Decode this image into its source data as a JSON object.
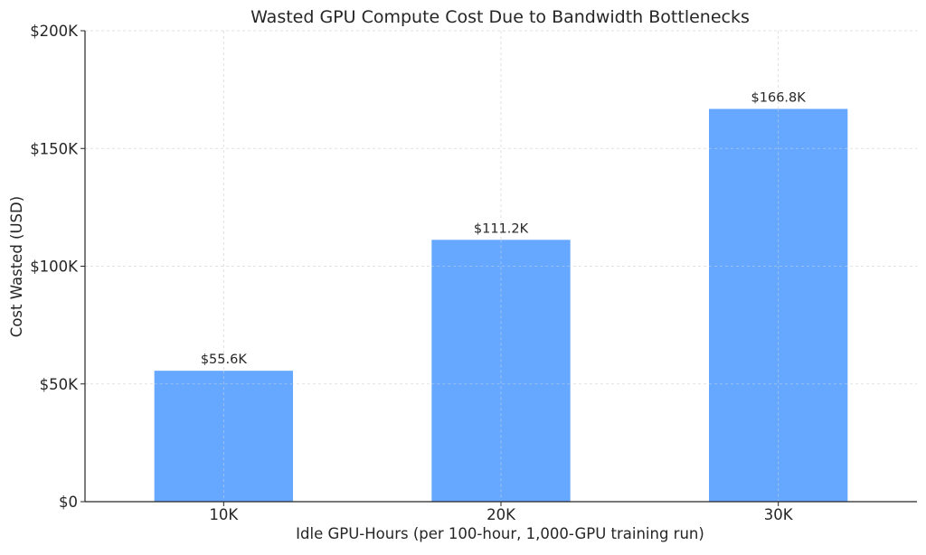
{
  "chart_data": {
    "type": "bar",
    "title": "Wasted GPU Compute Cost Due to Bandwidth Bottlenecks",
    "xlabel": "Idle GPU-Hours (per 100-hour, 1,000-GPU training run)",
    "ylabel": "Cost Wasted (USD)",
    "categories": [
      "10K",
      "20K",
      "30K"
    ],
    "values": [
      55600,
      111200,
      166800
    ],
    "value_labels": [
      "$55.6K",
      "$111.2K",
      "$166.8K"
    ],
    "ylim": [
      0,
      200000
    ],
    "yticks": [
      0,
      50000,
      100000,
      150000,
      200000
    ],
    "ytick_labels": [
      "$0",
      "$50K",
      "$100K",
      "$150K",
      "$200K"
    ],
    "grid": true,
    "legend": "none",
    "colors": {
      "bar": "#66a8ff",
      "grid": "#d9d9d9",
      "axis": "#262626",
      "text": "#262626"
    }
  }
}
